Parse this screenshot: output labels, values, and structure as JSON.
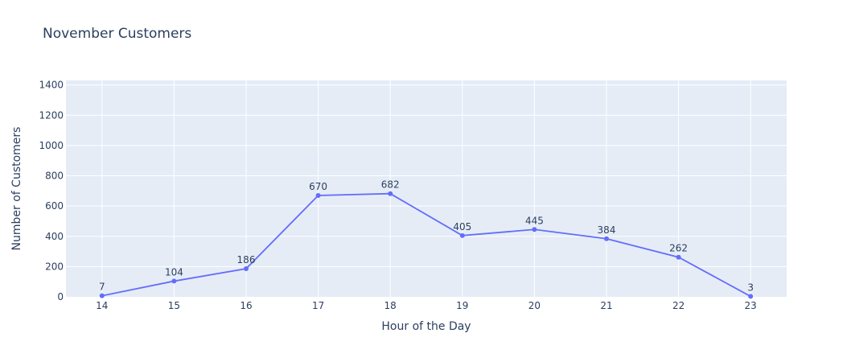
{
  "chart_data": {
    "type": "line",
    "title": "November Customers",
    "xlabel": "Hour of the Day",
    "ylabel": "Number of Customers",
    "x": [
      14,
      15,
      16,
      17,
      18,
      19,
      20,
      21,
      22,
      23
    ],
    "values": [
      7,
      104,
      186,
      670,
      682,
      405,
      445,
      384,
      262,
      3
    ],
    "data_labels": [
      "7",
      "104",
      "186",
      "670",
      "682",
      "405",
      "445",
      "384",
      "262",
      "3"
    ],
    "x_ticks": [
      "14",
      "15",
      "16",
      "17",
      "18",
      "19",
      "20",
      "21",
      "22",
      "23"
    ],
    "y_ticks": [
      "0",
      "200",
      "400",
      "600",
      "800",
      "1000",
      "1200",
      "1400"
    ],
    "y_tick_values": [
      0,
      200,
      400,
      600,
      800,
      1000,
      1200,
      1400
    ],
    "xlim": [
      13.5,
      23.5
    ],
    "ylim": [
      0,
      1430
    ],
    "grid": true,
    "legend": "none",
    "colors": {
      "plot_background": "#e5ecf6",
      "gridline": "#ffffff",
      "line": "#636efa",
      "text": "#2a3f5f"
    }
  }
}
